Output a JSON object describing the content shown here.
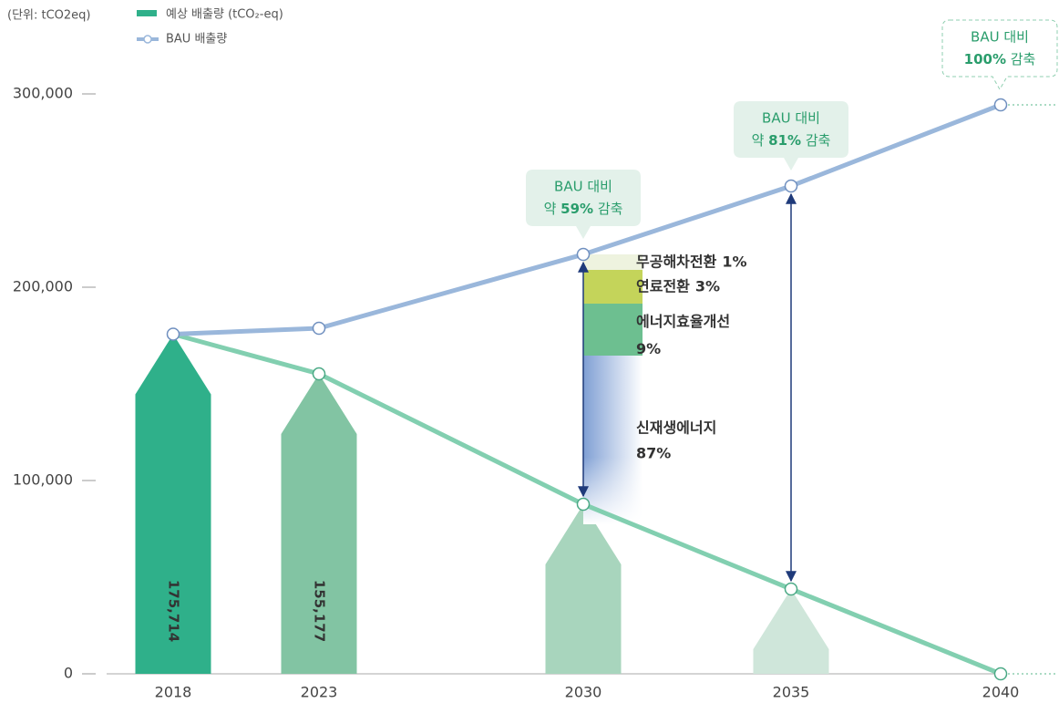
{
  "chart_data": {
    "type": "bar-line",
    "unit_label": "(단위: tCO2eq)",
    "categories": [
      "2018",
      "2023",
      "2030",
      "2035",
      "2040"
    ],
    "series": [
      {
        "name": "예상 배출량 (tCO₂-eq)",
        "type": "bar",
        "color": "#2fb08a",
        "bar_colors": [
          "#2fb08a",
          "#82c4a3",
          "#a8d5bd",
          "#cfe6da",
          "#e8f3ee"
        ],
        "line_color": "#82cfb0",
        "values": [
          175714,
          155177,
          87736,
          43868,
          0
        ],
        "value_labels": [
          "175,714",
          "155,177",
          null,
          null,
          null
        ]
      },
      {
        "name": "BAU 배출량",
        "type": "line",
        "color": "#9ab7db",
        "values": [
          175714,
          178774,
          216981,
          252358,
          294340
        ]
      }
    ],
    "ylim": [
      0,
      300000
    ],
    "yticks": [
      {
        "value": 0,
        "label": "0"
      },
      {
        "value": 100000,
        "label": "100,000"
      },
      {
        "value": 200000,
        "label": "200,000"
      },
      {
        "value": 300000,
        "label": "300,000"
      }
    ],
    "callouts": [
      {
        "category": 2,
        "line1": "BAU 대비",
        "prefix": "약 ",
        "bold": "59%",
        "suffix": " 감축",
        "dashed": false
      },
      {
        "category": 3,
        "line1": "BAU 대비",
        "prefix": "약 ",
        "bold": "81%",
        "suffix": " 감축",
        "dashed": false
      },
      {
        "category": 4,
        "line1": "BAU 대비",
        "prefix": "",
        "bold": "100%",
        "suffix": " 감축",
        "dashed": true
      }
    ],
    "breakdown": {
      "category": 2,
      "items": [
        {
          "name": "무공해차전환",
          "value": 1,
          "value_label": "1%",
          "color": "#eef3df",
          "text_color": "#555555"
        },
        {
          "name": "연료전환",
          "value": 3,
          "value_label": "3%",
          "color": "#c4d45a",
          "text_color": "#4caf2f"
        },
        {
          "name": "에너지효율개선",
          "value": 9,
          "value_label": "9%",
          "color": "#6dbf90",
          "text_color": "#2a9d6c"
        },
        {
          "name": "신재생에너지",
          "value": 87,
          "value_label": "87%",
          "color": "#7f9fd4",
          "text_color": "#4a7bc0"
        }
      ]
    }
  }
}
